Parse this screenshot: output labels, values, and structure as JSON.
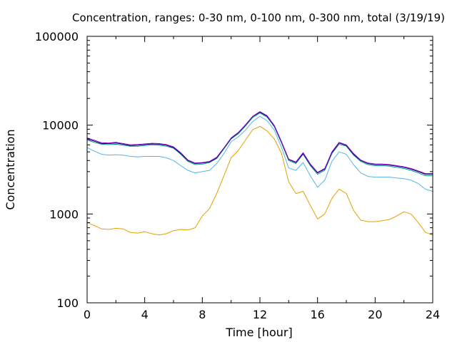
{
  "chart_data": {
    "type": "line",
    "title": "Concentration, ranges: 0-30 nm, 0-100 nm, 0-300 nm, total (3/19/19)",
    "xlabel": "Time [hour]",
    "ylabel": "Concentration",
    "xlim": [
      0,
      24
    ],
    "ylim": [
      100,
      100000
    ],
    "yscale": "log",
    "grid": false,
    "x_ticks": [
      0,
      4,
      8,
      12,
      16,
      20,
      24
    ],
    "x_tick_labels": [
      "0",
      "4",
      "8",
      "12",
      "16",
      "20",
      "24"
    ],
    "y_ticks": [
      100,
      1000,
      10000,
      100000
    ],
    "y_tick_labels": [
      "100",
      "1000",
      "10000",
      "100000"
    ],
    "x": [
      0,
      0.5,
      1,
      1.5,
      2,
      2.5,
      3,
      3.5,
      4,
      4.5,
      5,
      5.5,
      6,
      6.5,
      7,
      7.5,
      8,
      8.5,
      9,
      9.5,
      10,
      10.5,
      11,
      11.5,
      12,
      12.5,
      13,
      13.5,
      14,
      14.5,
      15,
      15.5,
      16,
      16.5,
      17,
      17.5,
      18,
      18.5,
      19,
      19.5,
      20,
      20.5,
      21,
      21.5,
      22,
      22.5,
      23,
      23.5,
      24
    ],
    "series": [
      {
        "color": "#e69f00",
        "values": [
          800,
          740,
          680,
          670,
          690,
          680,
          620,
          610,
          630,
          600,
          580,
          600,
          650,
          670,
          660,
          700,
          950,
          1150,
          1700,
          2700,
          4300,
          5200,
          6800,
          8900,
          9700,
          8600,
          7000,
          4800,
          2300,
          1700,
          1800,
          1250,
          880,
          1000,
          1500,
          1900,
          1700,
          1100,
          850,
          820,
          820,
          840,
          870,
          950,
          1060,
          1000,
          800,
          620,
          580
        ]
      },
      {
        "color": "#56b4e9",
        "values": [
          5600,
          5100,
          4700,
          4600,
          4650,
          4600,
          4450,
          4400,
          4450,
          4450,
          4450,
          4300,
          4000,
          3500,
          3100,
          2900,
          3000,
          3100,
          3700,
          4800,
          6500,
          7400,
          8800,
          11000,
          12600,
          11200,
          8800,
          5600,
          3300,
          3100,
          3800,
          2700,
          2000,
          2400,
          3900,
          5000,
          4700,
          3600,
          2900,
          2650,
          2600,
          2600,
          2600,
          2550,
          2500,
          2400,
          2200,
          1900,
          1800
        ]
      },
      {
        "color": "#009e73",
        "values": [
          6800,
          6400,
          6100,
          6050,
          6100,
          5950,
          5800,
          5800,
          5900,
          6000,
          5950,
          5800,
          5500,
          4700,
          3900,
          3600,
          3650,
          3800,
          4200,
          5400,
          7000,
          8000,
          9800,
          12200,
          13700,
          12300,
          9600,
          6300,
          4000,
          3700,
          4700,
          3500,
          2800,
          3100,
          4800,
          6100,
          5800,
          4600,
          3900,
          3600,
          3500,
          3500,
          3450,
          3350,
          3250,
          3100,
          2900,
          2700,
          2700
        ]
      },
      {
        "color": "#000080",
        "values": [
          7000,
          6600,
          6200,
          6200,
          6300,
          6100,
          5900,
          5950,
          6050,
          6150,
          6100,
          5950,
          5600,
          4800,
          4000,
          3700,
          3750,
          3850,
          4300,
          5500,
          7100,
          8200,
          10000,
          12500,
          14000,
          12600,
          9800,
          6400,
          4100,
          3800,
          4800,
          3600,
          2900,
          3200,
          4900,
          6300,
          5900,
          4700,
          4000,
          3700,
          3600,
          3600,
          3550,
          3450,
          3350,
          3200,
          3000,
          2800,
          2800
        ]
      },
      {
        "color": "#9400d3",
        "values": [
          7200,
          6750,
          6350,
          6300,
          6400,
          6200,
          6000,
          6050,
          6150,
          6250,
          6200,
          6050,
          5700,
          4900,
          4050,
          3750,
          3800,
          3900,
          4350,
          5550,
          7200,
          8300,
          10100,
          12600,
          14200,
          12800,
          9900,
          6500,
          4150,
          3850,
          4900,
          3650,
          2950,
          3250,
          5000,
          6400,
          6000,
          4800,
          4050,
          3750,
          3650,
          3650,
          3600,
          3500,
          3400,
          3250,
          3050,
          2850,
          2850
        ]
      }
    ]
  }
}
